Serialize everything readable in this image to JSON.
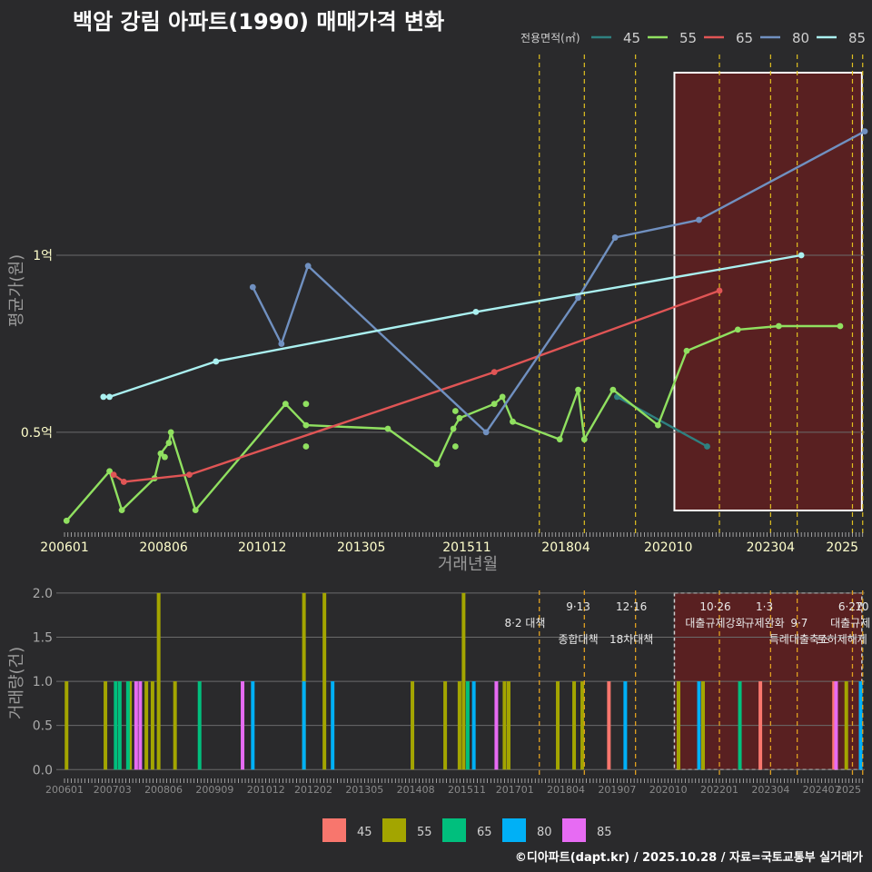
{
  "title": "백암 강림 아파트(1990) 매매가격 변화",
  "footer": "©디아파트(dapt.kr) / 2025.10.28 / 자료=국토교통부 실거래가",
  "colors": {
    "bg": "#2a2a2c",
    "grid": "#6b6b6b",
    "policy": "#e0c020",
    "policy_bottom": "#e0a020",
    "highlight": "#6a1e1e",
    "highlight_border": "#ffffff",
    "label": "#cfcfcf",
    "tick": "#ffffcc"
  },
  "chart_data": [
    {
      "type": "line",
      "title": "백암 강림 아파트(1990) 매매가격 변화",
      "xlabel": "거래년월",
      "ylabel": "평균가(원)",
      "xlim": [
        2005.8,
        2025.55
      ],
      "ylim": [
        0.22,
        1.58
      ],
      "y_ticks": [
        {
          "value": 0.5,
          "label": "0.5억"
        },
        {
          "value": 1.0,
          "label": "1억"
        }
      ],
      "x_ticks": [
        {
          "value": 2006.0,
          "label": "200601"
        },
        {
          "value": 2008.42,
          "label": "200806"
        },
        {
          "value": 2010.83,
          "label": "201012"
        },
        {
          "value": 2013.25,
          "label": "201305"
        },
        {
          "value": 2015.83,
          "label": "201511"
        },
        {
          "value": 2018.25,
          "label": "201804"
        },
        {
          "value": 2020.75,
          "label": "202010"
        },
        {
          "value": 2023.25,
          "label": "202304"
        },
        {
          "value": 2025.0,
          "label": "2025"
        }
      ],
      "legend_title": "전용면적(㎡)",
      "legend_position": "top-right",
      "policy_lines": [
        2017.6,
        2018.7,
        2019.95,
        2022.0,
        2023.25,
        2023.9,
        2025.25,
        2025.5
      ],
      "highlight_range": [
        2020.9,
        2025.48
      ],
      "series": [
        {
          "name": "45",
          "color": "#2f8080",
          "x": [
            2019.5,
            2021.7
          ],
          "y": [
            0.6,
            0.46
          ]
        },
        {
          "name": "55",
          "color": "#90e060",
          "x": [
            2006.05,
            2007.1,
            2007.4,
            2008.2,
            2008.35,
            2008.55,
            2008.6,
            2009.2,
            2011.4,
            2011.9,
            2013.9,
            2015.1,
            2015.5,
            2015.65,
            2016.5,
            2016.7,
            2016.95,
            2018.1,
            2018.55,
            2018.7,
            2019.4,
            2020.5,
            2021.2,
            2022.45,
            2023.45,
            2024.95
          ],
          "y": [
            0.25,
            0.39,
            0.28,
            0.37,
            0.44,
            0.47,
            0.5,
            0.28,
            0.58,
            0.52,
            0.51,
            0.41,
            0.51,
            0.54,
            0.58,
            0.6,
            0.53,
            0.48,
            0.62,
            0.48,
            0.62,
            0.52,
            0.73,
            0.79,
            0.8,
            0.8
          ],
          "extra_points_x": [
            2008.45,
            2011.9,
            2011.9,
            2015.55,
            2015.55
          ],
          "extra_points_y": [
            0.43,
            0.58,
            0.46,
            0.56,
            0.46
          ]
        },
        {
          "name": "65",
          "color": "#e05555",
          "x": [
            2007.2,
            2007.45,
            2009.05,
            2016.5,
            2022.0
          ],
          "y": [
            0.38,
            0.36,
            0.38,
            0.67,
            0.9
          ]
        },
        {
          "name": "80",
          "color": "#7090c0",
          "x": [
            2010.6,
            2011.3,
            2011.95,
            2016.3,
            2018.55,
            2019.45,
            2021.5,
            2025.55
          ],
          "y": [
            0.91,
            0.75,
            0.97,
            0.5,
            0.88,
            1.05,
            1.1,
            1.35
          ]
        },
        {
          "name": "85",
          "color": "#aaf0f0",
          "x": [
            2006.95,
            2007.1,
            2009.7,
            2016.05,
            2024.0
          ],
          "y": [
            0.6,
            0.6,
            0.7,
            0.84,
            1.0
          ]
        }
      ]
    },
    {
      "type": "bar",
      "xlabel": "",
      "ylabel": "거래량(건)",
      "xlim": [
        2005.8,
        2025.55
      ],
      "ylim": [
        -0.1,
        2.05
      ],
      "y_ticks": [
        0.0,
        0.5,
        1.0,
        1.5,
        2.0
      ],
      "y_tick_labels": [
        "0.0",
        "0.5",
        "1.0",
        "1.5",
        "2.0"
      ],
      "x_ticks": [
        {
          "value": 2006.0,
          "label": "200601"
        },
        {
          "value": 2007.17,
          "label": "200703"
        },
        {
          "value": 2008.42,
          "label": "200806"
        },
        {
          "value": 2009.67,
          "label": "200909"
        },
        {
          "value": 2010.92,
          "label": "201012"
        },
        {
          "value": 2012.08,
          "label": "201202"
        },
        {
          "value": 2013.33,
          "label": "201305"
        },
        {
          "value": 2014.58,
          "label": "201408"
        },
        {
          "value": 2015.83,
          "label": "201511"
        },
        {
          "value": 2017.0,
          "label": "201701"
        },
        {
          "value": 2018.25,
          "label": "201804"
        },
        {
          "value": 2019.5,
          "label": "201907"
        },
        {
          "value": 2020.75,
          "label": "202010"
        },
        {
          "value": 2022.0,
          "label": "202201"
        },
        {
          "value": 2023.25,
          "label": "202304"
        },
        {
          "value": 2024.5,
          "label": "202407"
        },
        {
          "value": 2025.15,
          "label": "2025"
        }
      ],
      "legend_position": "bottom",
      "highlight_range": [
        2020.9,
        2025.48
      ],
      "policy_lines": [
        2017.6,
        2018.7,
        2019.95,
        2022.0,
        2023.25,
        2023.9,
        2025.25,
        2025.5
      ],
      "policy_labels": [
        {
          "x": 2017.25,
          "label": "8·2 대책",
          "row": 2
        },
        {
          "x": 2018.55,
          "label": "9·13",
          "row": 1
        },
        {
          "x": 2018.55,
          "label": "종합대책",
          "row": 3
        },
        {
          "x": 2019.85,
          "label": "12·16",
          "row": 1
        },
        {
          "x": 2019.85,
          "label": "18차대책",
          "row": 3
        },
        {
          "x": 2021.9,
          "label": "10·26",
          "row": 1
        },
        {
          "x": 2021.9,
          "label": "대출규제강화",
          "row": 2
        },
        {
          "x": 2023.1,
          "label": "1·3",
          "row": 1
        },
        {
          "x": 2023.1,
          "label": "규제완화",
          "row": 2
        },
        {
          "x": 2023.95,
          "label": "9·7",
          "row": 2
        },
        {
          "x": 2023.95,
          "label": "특례대출축소",
          "row": 3
        },
        {
          "x": 2025.2,
          "label": "6·27",
          "row": 1
        },
        {
          "x": 2025.2,
          "label": "대출규제",
          "row": 2
        },
        {
          "x": 2025.0,
          "label": "토허제해제",
          "row": 3
        },
        {
          "x": 2025.48,
          "label": "10",
          "row": 1
        }
      ],
      "series": [
        {
          "name": "45",
          "color": "#f8766d",
          "x": [
            2019.3,
            2021.0,
            2023.0,
            2024.8
          ],
          "values": [
            1,
            1,
            1,
            1
          ]
        },
        {
          "name": "55",
          "color": "#a3a500",
          "x": [
            2006.05,
            2007.0,
            2007.6,
            2008.0,
            2008.15,
            2008.3,
            2008.7,
            2011.85,
            2012.35,
            2014.5,
            2015.3,
            2015.65,
            2015.75,
            2016.75,
            2016.85,
            2018.05,
            2018.45,
            2018.65,
            2021.0,
            2021.6,
            2025.1
          ],
          "values": [
            1,
            1,
            1,
            1,
            1,
            2,
            1,
            2,
            2,
            1,
            1,
            1,
            2,
            1,
            1,
            1,
            1,
            1,
            1,
            1,
            1
          ]
        },
        {
          "name": "65",
          "color": "#00bf7d",
          "x": [
            2007.25,
            2007.35,
            2007.55,
            2009.3,
            2015.85,
            2022.5
          ],
          "values": [
            1,
            1,
            1,
            1,
            1,
            1
          ]
        },
        {
          "name": "80",
          "color": "#00b0f6",
          "x": [
            2010.6,
            2011.85,
            2012.55,
            2016.0,
            2019.7,
            2021.5,
            2025.45
          ],
          "values": [
            1,
            1,
            1,
            1,
            1,
            1,
            1
          ]
        },
        {
          "name": "85",
          "color": "#e76bf3",
          "x": [
            2007.75,
            2007.85,
            2010.35,
            2016.55,
            2024.85
          ],
          "values": [
            1,
            1,
            1,
            1,
            1
          ]
        }
      ]
    }
  ]
}
